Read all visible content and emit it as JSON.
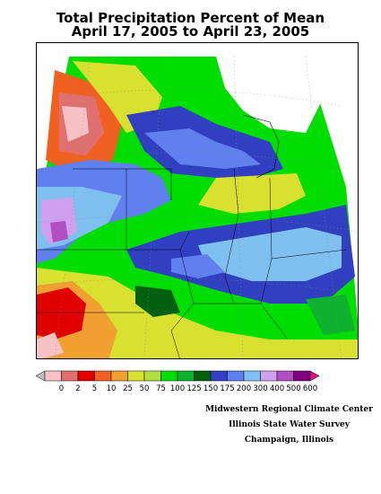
{
  "title": {
    "line1": "Total Precipitation Percent of Mean",
    "line2": "April 17, 2005 to April 23, 2005"
  },
  "legend": {
    "colors": [
      "#bfbfbf",
      "#f7c2c6",
      "#e07070",
      "#e00000",
      "#f06020",
      "#f0a030",
      "#d8e030",
      "#b0e040",
      "#00e000",
      "#10b030",
      "#006010",
      "#3040c0",
      "#6080f0",
      "#80c0f0",
      "#d0a0f0",
      "#b050c0",
      "#800080",
      "#e01080"
    ],
    "labels": [
      "0",
      "2",
      "5",
      "10",
      "25",
      "50",
      "75",
      "100",
      "125",
      "150",
      "175",
      "200",
      "300",
      "400",
      "500",
      "600"
    ]
  },
  "credits": {
    "line1": "Midwestern Regional Climate Center",
    "line2": "Illinois State Water Survey",
    "line3": "Champaign, Illinois"
  }
}
